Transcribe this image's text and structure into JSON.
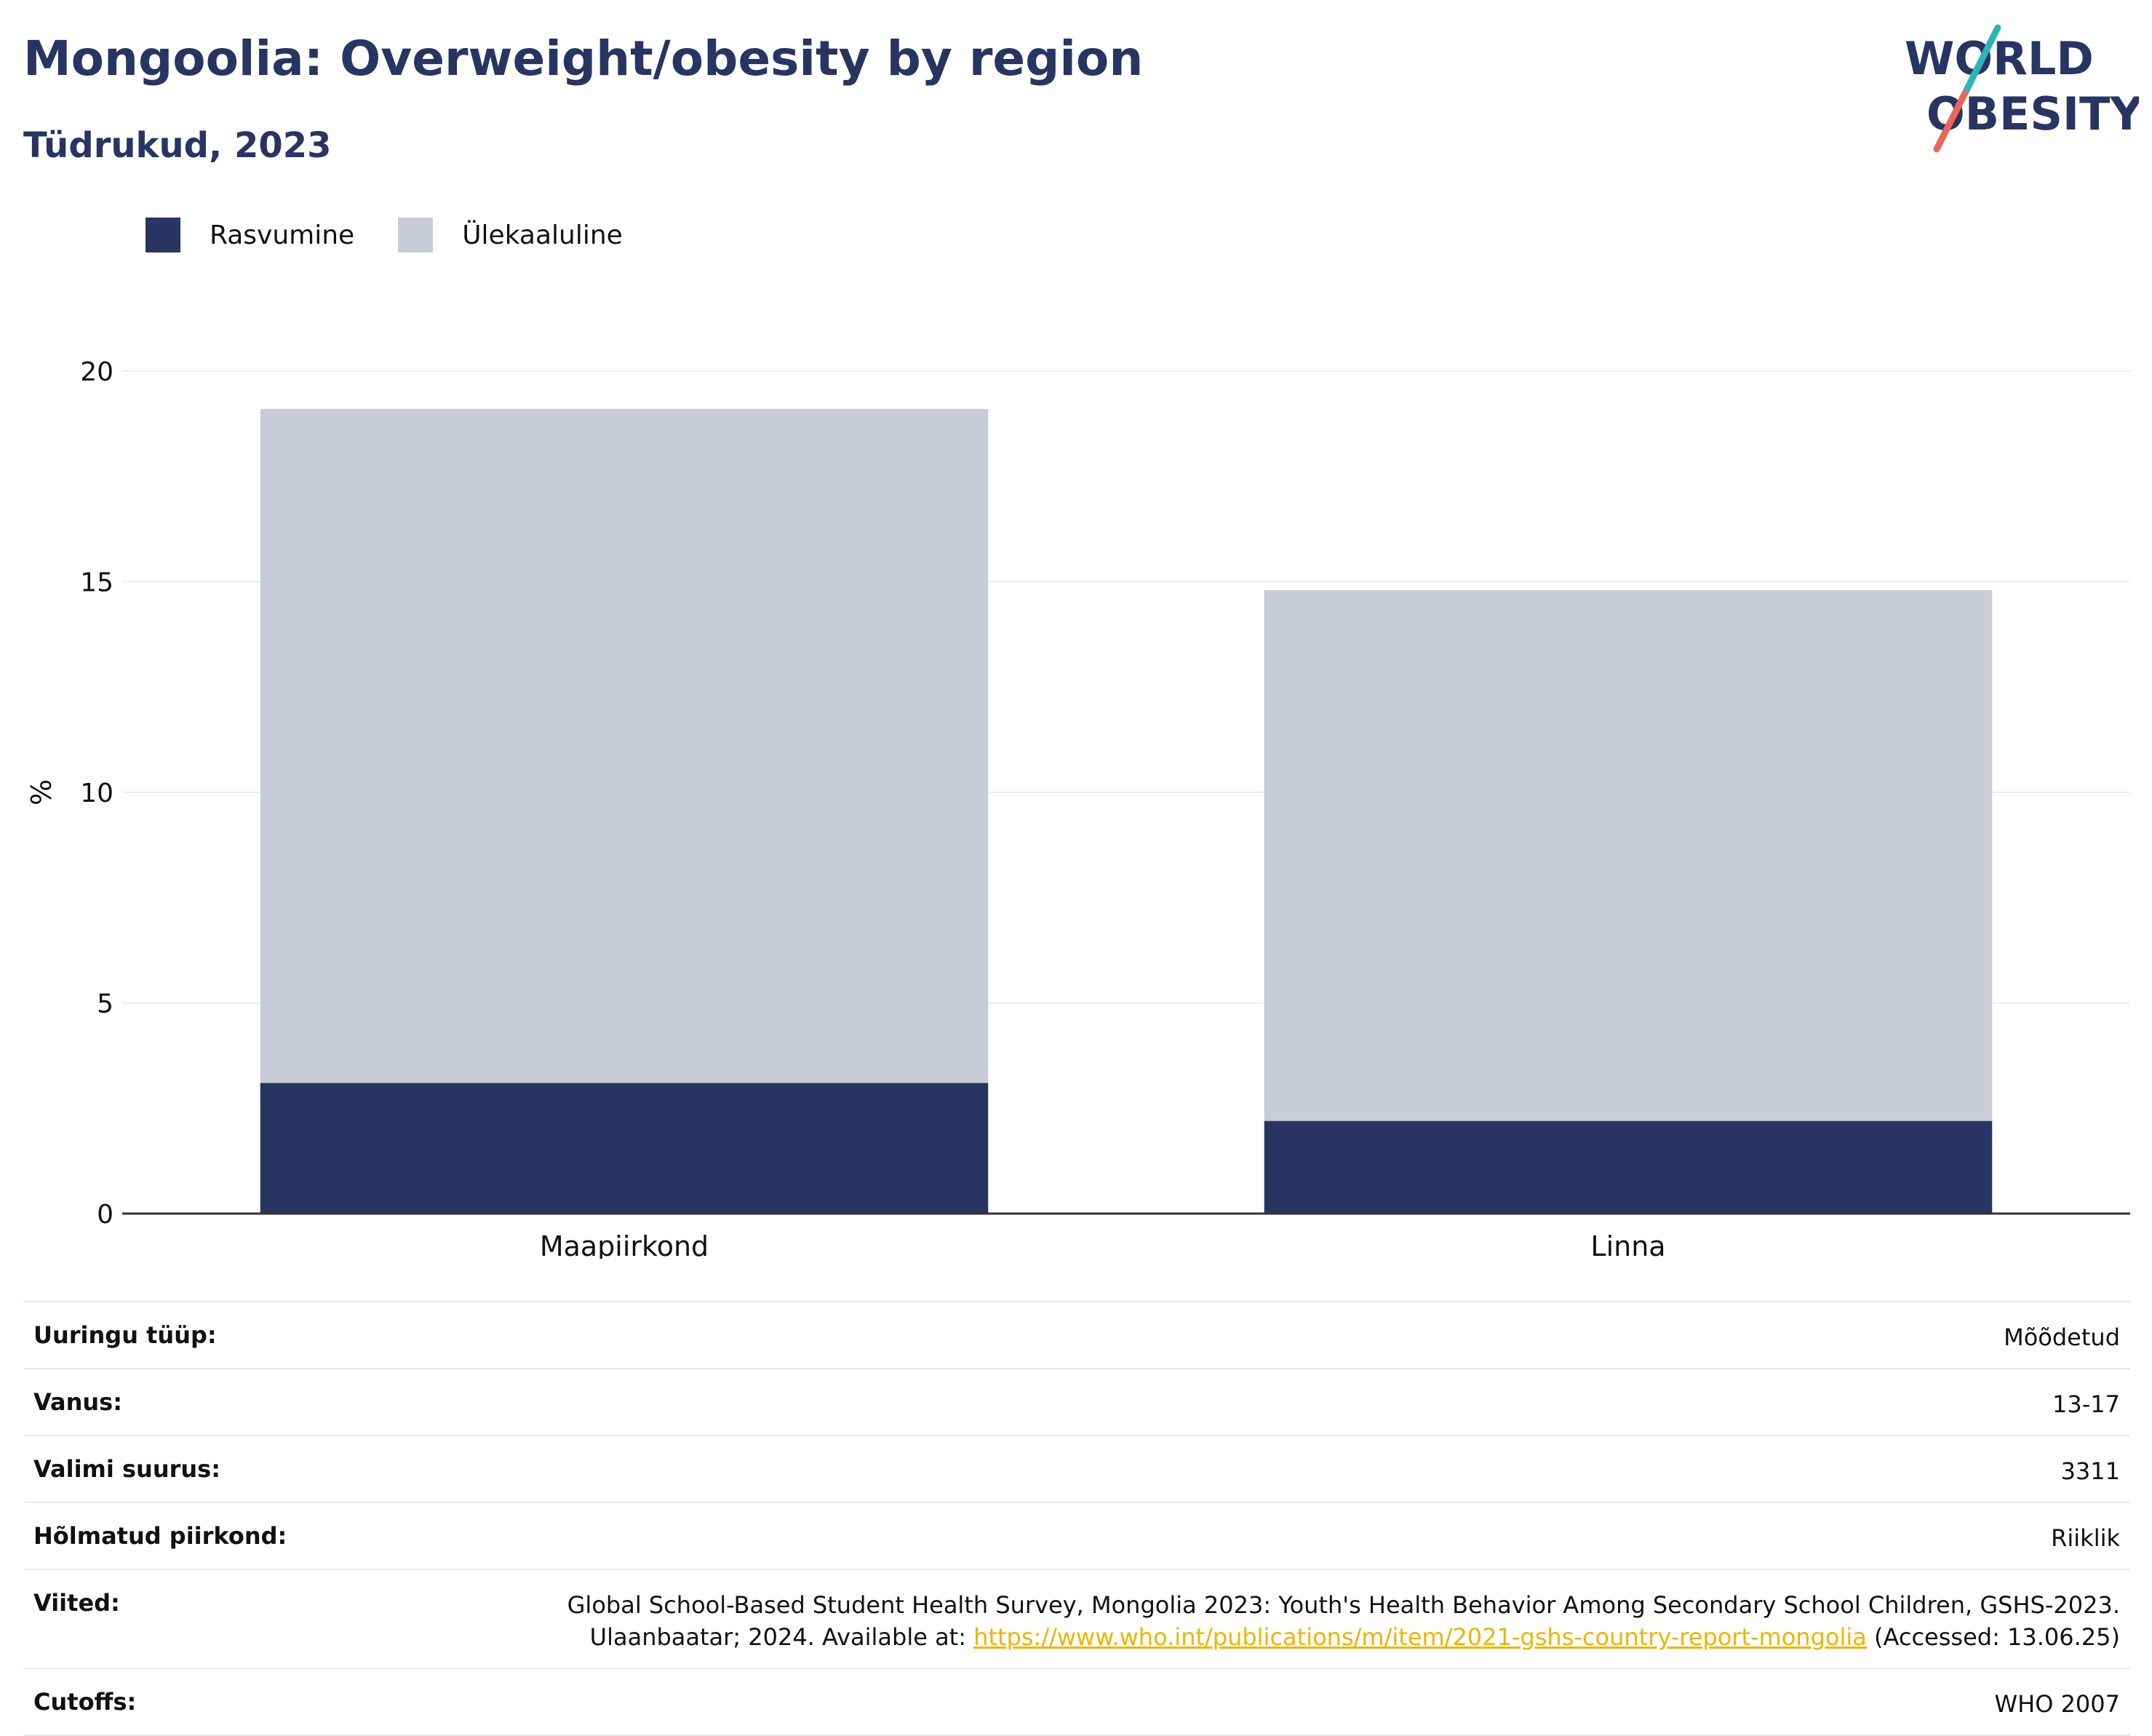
{
  "header": {
    "title": "Mongoolia: Overweight/obesity by region",
    "subtitle": "Tüdrukud, 2023",
    "logo_text": "WORLD OBESITY"
  },
  "colors": {
    "obesity": "#283562",
    "overweight": "#c9ccd7",
    "title": "#283562",
    "link": "#f0b400",
    "logo_teal": "#2bb5b8",
    "logo_coral": "#e8675a"
  },
  "chart_data": {
    "type": "bar",
    "stacked": true,
    "categories": [
      "Maapiirkond",
      "Linna"
    ],
    "series": [
      {
        "name": "Rasvumine",
        "values": [
          3.1,
          2.2
        ]
      },
      {
        "name": "Ülekaaluline",
        "values": [
          16.0,
          12.6
        ]
      }
    ],
    "title": "",
    "xlabel": "",
    "ylabel": "%",
    "ylim": [
      0,
      20
    ],
    "yticks": [
      "0",
      "5",
      "10",
      "15",
      "20"
    ],
    "grid": true,
    "legend": "top-left"
  },
  "meta": {
    "survey_type": {
      "label": "Uuringu tüüp:",
      "value": "Mõõdetud"
    },
    "age": {
      "label": "Vanus:",
      "value": "13-17"
    },
    "sample_size": {
      "label": "Valimi suurus:",
      "value": "3311"
    },
    "area": {
      "label": "Hõlmatud piirkond:",
      "value": "Riiklik"
    },
    "references": {
      "label": "Viited:",
      "line1": "Global School-Based Student Health Survey, Mongolia 2023: Youth's Health Behavior Among Secondary School Children, GSHS-2023.",
      "line2_prefix": "Ulaanbaatar; 2024. Available at: ",
      "link": "https://www.who.int/publications/m/item/2021-gshs-country-report-mongolia",
      "line2_suffix": " (Accessed: 13.06.25)"
    },
    "cutoffs": {
      "label": "Cutoffs:",
      "value": "WHO 2007"
    }
  }
}
